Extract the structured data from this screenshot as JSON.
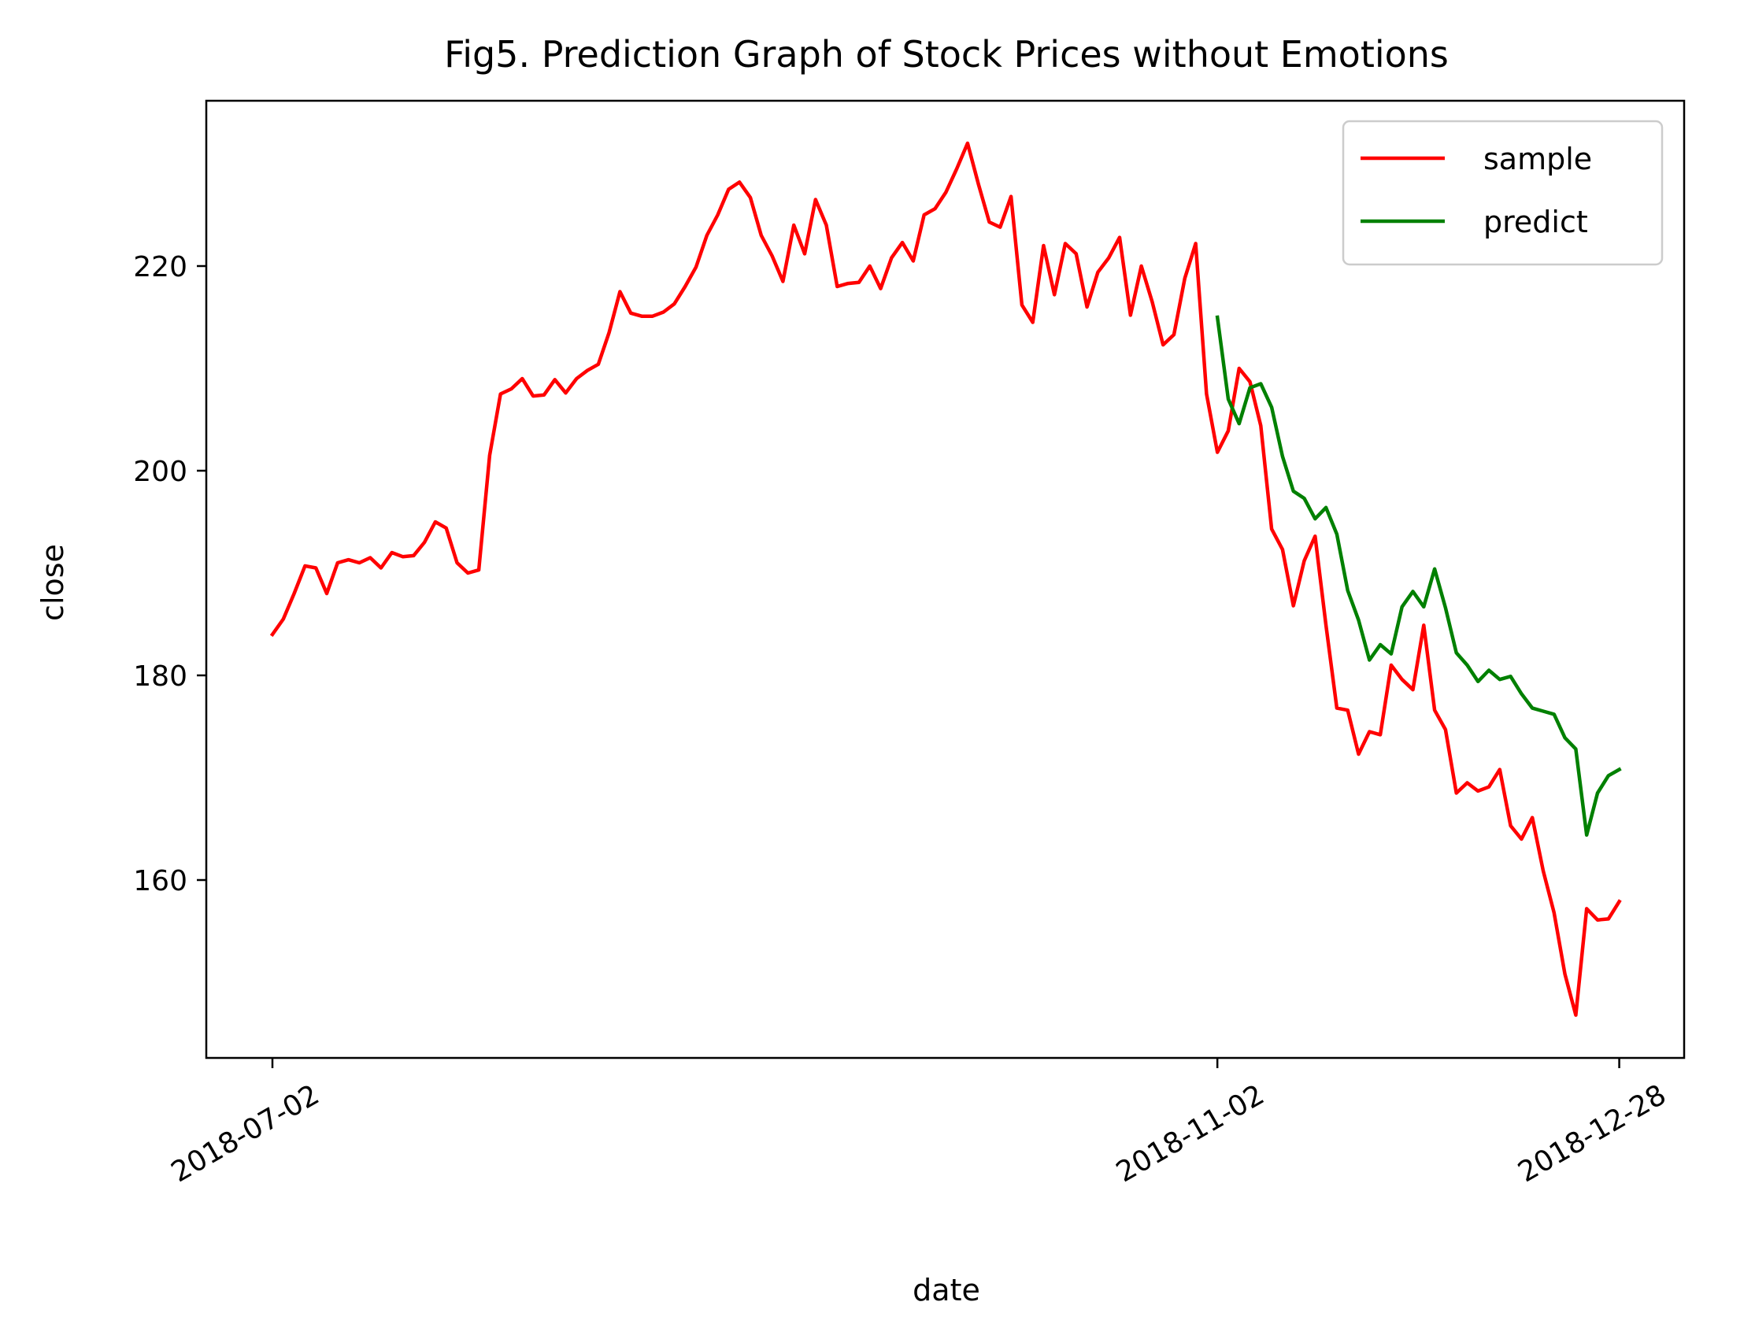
{
  "chart_data": {
    "type": "line",
    "title": "Fig5. Prediction Graph of Stock Prices without Emotions",
    "xlabel": "date",
    "ylabel": "close",
    "x_ticks": [
      "2018-07-02",
      "2018-11-02",
      "2018-12-28"
    ],
    "y_ticks": [
      160,
      180,
      200,
      220
    ],
    "ylim": [
      142.5,
      236
    ],
    "grid": false,
    "legend_position": "top-right",
    "series": [
      {
        "name": "sample",
        "color": "#ff0000",
        "start_index": 0,
        "values": [
          184.0,
          185.5,
          188.0,
          190.7,
          190.5,
          188.0,
          191.0,
          191.3,
          191.0,
          191.5,
          190.5,
          192.0,
          191.6,
          191.7,
          193.0,
          195.0,
          194.4,
          191.0,
          190.0,
          190.3,
          201.5,
          207.5,
          208.0,
          209.0,
          207.3,
          207.4,
          208.9,
          207.6,
          209.0,
          209.8,
          210.4,
          213.5,
          217.5,
          215.4,
          215.1,
          215.1,
          215.5,
          216.3,
          218.0,
          219.9,
          223.0,
          225.0,
          227.5,
          228.2,
          226.7,
          223.0,
          221.0,
          218.5,
          224.0,
          221.2,
          226.5,
          224.0,
          218.0,
          218.3,
          218.4,
          220.0,
          217.8,
          220.8,
          222.3,
          220.5,
          225.0,
          225.6,
          227.2,
          229.5,
          232.0,
          228.0,
          224.3,
          223.8,
          226.8,
          216.2,
          214.5,
          222.0,
          217.2,
          222.2,
          221.2,
          216.0,
          219.4,
          220.8,
          222.8,
          215.2,
          220.0,
          216.5,
          212.3,
          213.3,
          218.8,
          222.2,
          207.5,
          201.8,
          203.9,
          210.0,
          208.7,
          204.4,
          194.3,
          192.3,
          186.8,
          191.2,
          193.6,
          184.9,
          176.8,
          176.6,
          172.3,
          174.5,
          174.2,
          181.0,
          179.6,
          178.6,
          184.9,
          176.6,
          174.7,
          168.5,
          169.5,
          168.7,
          169.1,
          170.8,
          165.3,
          164.0,
          166.1,
          160.9,
          156.8,
          150.8,
          146.8,
          157.2,
          156.1,
          156.2,
          157.9
        ]
      },
      {
        "name": "predict",
        "color": "#008000",
        "start_index": 87,
        "values": [
          215.0,
          207.0,
          204.6,
          208.1,
          208.5,
          206.2,
          201.4,
          198.0,
          197.3,
          195.3,
          196.4,
          193.8,
          188.3,
          185.4,
          181.5,
          183.0,
          182.1,
          186.7,
          188.2,
          186.7,
          190.4,
          186.6,
          182.2,
          181.0,
          179.4,
          180.5,
          179.6,
          179.9,
          178.2,
          176.8,
          176.5,
          176.2,
          173.9,
          172.8,
          164.4,
          168.5,
          170.2,
          170.8
        ]
      }
    ]
  }
}
